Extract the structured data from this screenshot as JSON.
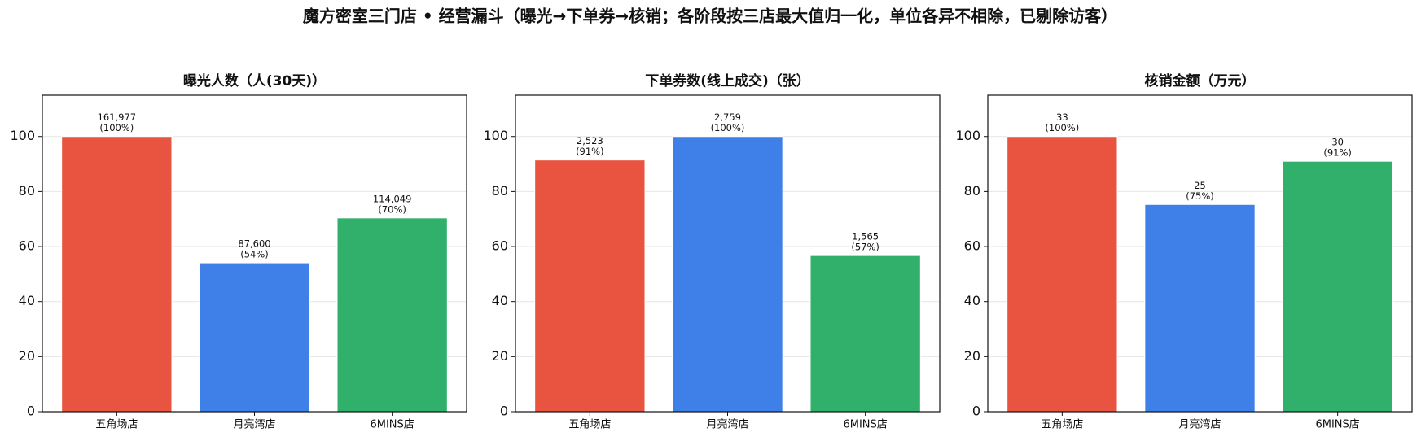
{
  "title": "魔方密室三门店 • 经营漏斗（曝光→下单券→核销；各阶段按三店最大值归一化，单位各异不相除，已剔除访客）",
  "chart_data": [
    {
      "type": "bar",
      "title": "曝光人数（人(30天)）",
      "categories": [
        "五角场店",
        "月亮湾店",
        "6MINS店"
      ],
      "values": [
        100,
        54.08,
        70.41
      ],
      "value_labels": [
        "(100%)",
        "(54%)",
        "(70%)"
      ],
      "count_labels": [
        "161,977",
        "87,600",
        "114,049"
      ],
      "colors": [
        "#e8543f",
        "#3f80e8",
        "#31b06b"
      ],
      "ylim": [
        0,
        115
      ],
      "yticks": [
        0,
        20,
        40,
        60,
        80,
        100
      ],
      "grid": true
    },
    {
      "type": "bar",
      "title": "下单券数(线上成交)（张）",
      "categories": [
        "五角场店",
        "月亮湾店",
        "6MINS店"
      ],
      "values": [
        91.45,
        100,
        56.72
      ],
      "value_labels": [
        "(91%)",
        "(100%)",
        "(57%)"
      ],
      "count_labels": [
        "2,523",
        "2,759",
        "1,565"
      ],
      "colors": [
        "#e8543f",
        "#3f80e8",
        "#31b06b"
      ],
      "ylim": [
        0,
        115
      ],
      "yticks": [
        0,
        20,
        40,
        60,
        80,
        100
      ],
      "grid": true
    },
    {
      "type": "bar",
      "title": "核销金额（万元）",
      "categories": [
        "五角场店",
        "月亮湾店",
        "6MINS店"
      ],
      "values": [
        100,
        75.3,
        91
      ],
      "value_labels": [
        "(100%)",
        "(75%)",
        "(91%)"
      ],
      "count_labels": [
        "33",
        "25",
        "30"
      ],
      "colors": [
        "#e8543f",
        "#3f80e8",
        "#31b06b"
      ],
      "ylim": [
        0,
        115
      ],
      "yticks": [
        0,
        20,
        40,
        60,
        80,
        100
      ],
      "grid": true
    }
  ]
}
